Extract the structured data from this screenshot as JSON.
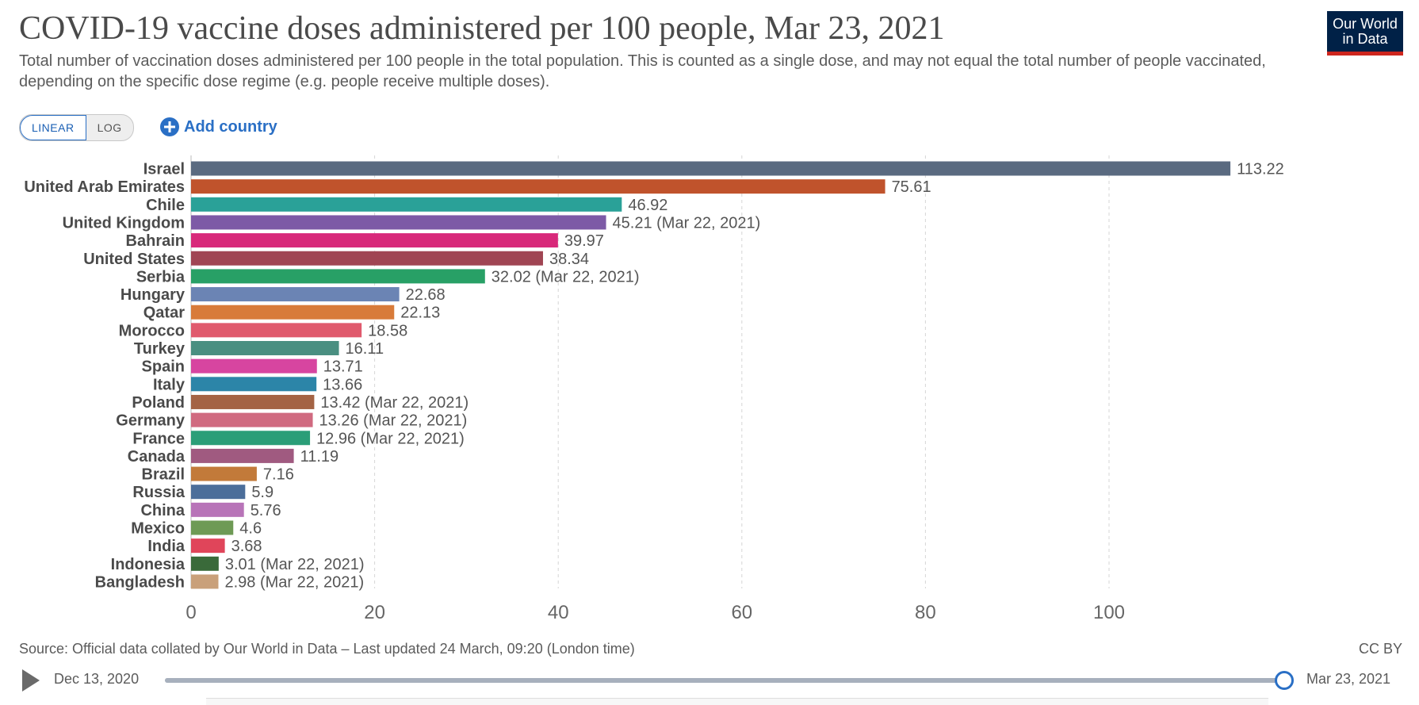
{
  "header": {
    "title": "COVID-19 vaccine doses administered per 100 people, Mar 23, 2021",
    "subtitle": "Total number of vaccination doses administered per 100 people in the total population. This is counted as a single dose, and may not equal the total number of people vaccinated, depending on the specific dose regime (e.g. people receive multiple doses).",
    "logo_line1": "Our World",
    "logo_line2": "in Data"
  },
  "controls": {
    "linear_label": "LINEAR",
    "log_label": "LOG",
    "add_country_label": "Add country",
    "scale_selected": "LINEAR"
  },
  "colors": {
    "accent": "#2a6fc5",
    "logo_bg": "#002147",
    "logo_stripe": "#ce261e"
  },
  "chart_data": {
    "type": "bar",
    "orientation": "horizontal",
    "title": "COVID-19 vaccine doses administered per 100 people, Mar 23, 2021",
    "xlim": [
      0,
      120
    ],
    "xticks": [
      0,
      20,
      40,
      60,
      80,
      100
    ],
    "grid": "vertical dashed",
    "categories": [
      "Israel",
      "United Arab Emirates",
      "Chile",
      "United Kingdom",
      "Bahrain",
      "United States",
      "Serbia",
      "Hungary",
      "Qatar",
      "Morocco",
      "Turkey",
      "Spain",
      "Italy",
      "Poland",
      "Germany",
      "France",
      "Canada",
      "Brazil",
      "Russia",
      "China",
      "Mexico",
      "India",
      "Indonesia",
      "Bangladesh"
    ],
    "values": [
      113.22,
      75.61,
      46.92,
      45.21,
      39.97,
      38.34,
      32.02,
      22.68,
      22.13,
      18.58,
      16.11,
      13.71,
      13.66,
      13.42,
      13.26,
      12.96,
      11.19,
      7.16,
      5.9,
      5.76,
      4.6,
      3.68,
      3.01,
      2.98
    ],
    "value_labels": [
      "113.22",
      "75.61",
      "46.92",
      "45.21 (Mar 22, 2021)",
      "39.97",
      "38.34",
      "32.02 (Mar 22, 2021)",
      "22.68",
      "22.13",
      "18.58",
      "16.11",
      "13.71",
      "13.66",
      "13.42 (Mar 22, 2021)",
      "13.26 (Mar 22, 2021)",
      "12.96 (Mar 22, 2021)",
      "11.19",
      "7.16",
      "5.9",
      "5.76",
      "4.6",
      "3.68",
      "3.01 (Mar 22, 2021)",
      "2.98 (Mar 22, 2021)"
    ],
    "colors": [
      "#5a6a80",
      "#c0532c",
      "#2aa198",
      "#7d5aa6",
      "#d8297a",
      "#a04553",
      "#28a066",
      "#6b84b4",
      "#d87b3a",
      "#e05a6d",
      "#4a8f81",
      "#d745a0",
      "#2c85a8",
      "#a46344",
      "#d06a80",
      "#2b9e78",
      "#a05a80",
      "#c27a3a",
      "#4b6e9a",
      "#b874b8",
      "#6e9a55",
      "#e0455a",
      "#3a6a3a",
      "#c9a07a"
    ]
  },
  "footer": {
    "source": "Source: Official data collated by Our World in Data – Last updated 24 March, 09:20 (London time)",
    "license": "CC BY"
  },
  "timeline": {
    "start_label": "Dec 13, 2020",
    "end_label": "Mar 23, 2021",
    "position": 1.0
  }
}
